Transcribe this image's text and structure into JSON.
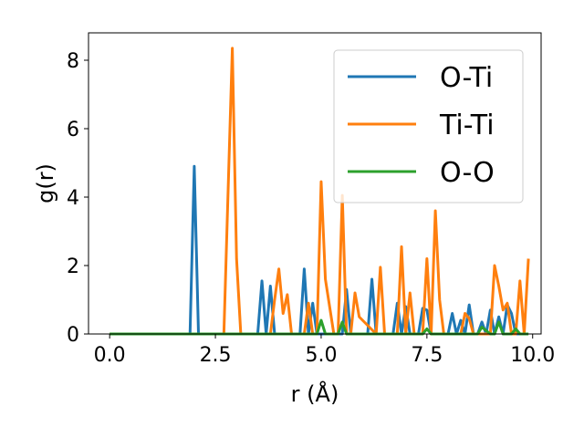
{
  "chart_data": {
    "type": "line",
    "xlabel": "r (Å)",
    "ylabel": "g(r)",
    "xlim": [
      -0.5,
      10.2
    ],
    "ylim": [
      0,
      8.8
    ],
    "xticks": [
      {
        "value": 0.0,
        "label": "0.0"
      },
      {
        "value": 2.5,
        "label": "2.5"
      },
      {
        "value": 5.0,
        "label": "5.0"
      },
      {
        "value": 7.5,
        "label": "7.5"
      },
      {
        "value": 10.0,
        "label": "10.0"
      }
    ],
    "yticks": [
      {
        "value": 0,
        "label": "0"
      },
      {
        "value": 2,
        "label": "2"
      },
      {
        "value": 4,
        "label": "4"
      },
      {
        "value": 6,
        "label": "6"
      },
      {
        "value": 8,
        "label": "8"
      }
    ],
    "grid": false,
    "legend_position": "top-right",
    "series": [
      {
        "name": "O-Ti",
        "color": "#1f77b4",
        "x": [
          0.0,
          1.9,
          2.0,
          2.1,
          3.5,
          3.6,
          3.7,
          3.8,
          3.9,
          4.5,
          4.6,
          4.7,
          4.8,
          4.9,
          5.5,
          5.6,
          5.7,
          6.1,
          6.2,
          6.3,
          6.7,
          6.8,
          6.9,
          7.0,
          7.1,
          7.3,
          7.4,
          7.5,
          7.6,
          7.7,
          8.0,
          8.1,
          8.2,
          8.3,
          8.4,
          8.5,
          8.6,
          8.7,
          8.8,
          8.9,
          9.0,
          9.1,
          9.2,
          9.3,
          9.4,
          9.5,
          9.6,
          9.7,
          9.8,
          9.9
        ],
        "y": [
          0.0,
          0.0,
          4.9,
          0.0,
          0.0,
          1.55,
          0.0,
          1.4,
          0.0,
          0.0,
          1.9,
          0.0,
          0.9,
          0.0,
          0.0,
          1.3,
          0.0,
          0.0,
          1.6,
          0.0,
          0.0,
          0.9,
          0.0,
          0.8,
          0.0,
          0.0,
          0.75,
          0.7,
          0.0,
          0.0,
          0.0,
          0.6,
          0.0,
          0.4,
          0.0,
          0.85,
          0.0,
          0.0,
          0.35,
          0.0,
          0.7,
          0.0,
          0.5,
          0.0,
          0.85,
          0.6,
          0.0,
          0.0,
          0.0,
          0.0
        ]
      },
      {
        "name": "Ti-Ti",
        "color": "#ff7f0e",
        "x": [
          0.0,
          2.7,
          2.9,
          3.0,
          3.1,
          3.8,
          3.9,
          4.0,
          4.1,
          4.2,
          4.3,
          4.6,
          4.7,
          4.8,
          4.9,
          5.0,
          5.1,
          5.3,
          5.4,
          5.5,
          5.6,
          5.7,
          5.8,
          5.9,
          6.3,
          6.4,
          6.5,
          6.7,
          6.8,
          6.9,
          7.0,
          7.1,
          7.2,
          7.3,
          7.4,
          7.5,
          7.6,
          7.7,
          7.8,
          7.9,
          8.1,
          8.2,
          8.3,
          8.4,
          8.5,
          8.6,
          8.7,
          8.8,
          8.9,
          9.0,
          9.1,
          9.2,
          9.3,
          9.4,
          9.5,
          9.6,
          9.7,
          9.8,
          9.9
        ],
        "y": [
          0.0,
          0.0,
          8.35,
          2.2,
          0.0,
          0.0,
          1.0,
          1.9,
          0.6,
          1.15,
          0.0,
          0.0,
          0.9,
          0.0,
          0.0,
          4.45,
          1.6,
          0.0,
          0.0,
          4.05,
          0.0,
          0.0,
          1.2,
          0.5,
          0.0,
          1.95,
          0.0,
          0.0,
          0.0,
          2.55,
          0.0,
          1.2,
          0.0,
          0.0,
          0.0,
          2.2,
          0.0,
          3.6,
          1.0,
          0.0,
          0.0,
          0.0,
          0.0,
          0.6,
          0.45,
          0.0,
          0.0,
          0.0,
          0.0,
          0.0,
          2.0,
          1.4,
          0.7,
          0.9,
          0.0,
          0.0,
          1.55,
          0.0,
          2.2
        ]
      },
      {
        "name": "O-O",
        "color": "#2ca02c",
        "x": [
          0.0,
          4.9,
          5.0,
          5.1,
          5.4,
          5.5,
          5.6,
          7.4,
          7.5,
          7.6,
          8.6,
          8.7,
          8.8,
          9.0,
          9.1,
          9.2,
          9.3,
          9.5,
          9.6,
          9.7,
          9.8,
          9.9
        ],
        "y": [
          0.0,
          0.0,
          0.4,
          0.0,
          0.0,
          0.35,
          0.0,
          0.0,
          0.15,
          0.0,
          0.0,
          0.0,
          0.2,
          0.0,
          0.0,
          0.35,
          0.0,
          0.0,
          0.15,
          0.0,
          0.0,
          0.0
        ]
      }
    ]
  }
}
